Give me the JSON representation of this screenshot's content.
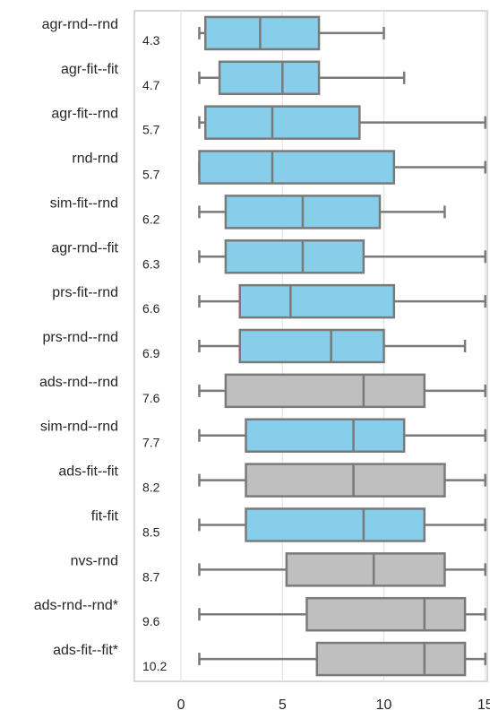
{
  "chart_data": {
    "type": "box",
    "orientation": "horizontal",
    "x_ticks": [
      0,
      5,
      10,
      15
    ],
    "xlim": [
      -2.3,
      15.1
    ],
    "grid": "vertical",
    "colors": {
      "highlight": "#87CEEB",
      "baseline": "#BFBFBF",
      "stroke": "#7A7A7A",
      "grid": "#E3E3E3",
      "frame": "#CCCCCC"
    },
    "series": [
      {
        "name": "agr-rnd--rnd",
        "score": "4.3",
        "color": "highlight",
        "whisker_low": 0.9,
        "q1": 1.2,
        "median": 3.9,
        "q3": 6.8,
        "whisker_high": 10.0
      },
      {
        "name": "agr-fit--fit",
        "score": "4.7",
        "color": "highlight",
        "whisker_low": 0.9,
        "q1": 1.9,
        "median": 5.0,
        "q3": 6.8,
        "whisker_high": 11.0
      },
      {
        "name": "agr-fit--rnd",
        "score": "5.7",
        "color": "highlight",
        "whisker_low": 0.9,
        "q1": 1.2,
        "median": 4.5,
        "q3": 8.8,
        "whisker_high": 15.0
      },
      {
        "name": "rnd-rnd",
        "score": "5.7",
        "color": "highlight",
        "whisker_low": 0.9,
        "q1": 0.9,
        "median": 4.5,
        "q3": 10.5,
        "whisker_high": 15.0
      },
      {
        "name": "sim-fit--rnd",
        "score": "6.2",
        "color": "highlight",
        "whisker_low": 0.9,
        "q1": 2.2,
        "median": 6.0,
        "q3": 9.8,
        "whisker_high": 13.0
      },
      {
        "name": "agr-rnd--fit",
        "score": "6.3",
        "color": "highlight",
        "whisker_low": 0.9,
        "q1": 2.2,
        "median": 6.0,
        "q3": 9.0,
        "whisker_high": 15.0
      },
      {
        "name": "prs-fit--rnd",
        "score": "6.6",
        "color": "highlight",
        "whisker_low": 0.9,
        "q1": 2.9,
        "median": 5.4,
        "q3": 10.5,
        "whisker_high": 15.0
      },
      {
        "name": "prs-rnd--rnd",
        "score": "6.9",
        "color": "highlight",
        "whisker_low": 0.9,
        "q1": 2.9,
        "median": 7.4,
        "q3": 10.0,
        "whisker_high": 14.0
      },
      {
        "name": "ads-rnd--rnd",
        "score": "7.6",
        "color": "baseline",
        "whisker_low": 0.9,
        "q1": 2.2,
        "median": 9.0,
        "q3": 12.0,
        "whisker_high": 15.0
      },
      {
        "name": "sim-rnd--rnd",
        "score": "7.7",
        "color": "highlight",
        "whisker_low": 0.9,
        "q1": 3.2,
        "median": 8.5,
        "q3": 11.0,
        "whisker_high": 15.0
      },
      {
        "name": "ads-fit--fit",
        "score": "8.2",
        "color": "baseline",
        "whisker_low": 0.9,
        "q1": 3.2,
        "median": 8.5,
        "q3": 13.0,
        "whisker_high": 15.0
      },
      {
        "name": "fit-fit",
        "score": "8.5",
        "color": "highlight",
        "whisker_low": 0.9,
        "q1": 3.2,
        "median": 9.0,
        "q3": 12.0,
        "whisker_high": 15.0
      },
      {
        "name": "nvs-rnd",
        "score": "8.7",
        "color": "baseline",
        "whisker_low": 0.9,
        "q1": 5.2,
        "median": 9.5,
        "q3": 13.0,
        "whisker_high": 15.0
      },
      {
        "name": "ads-rnd--rnd*",
        "score": "9.6",
        "color": "baseline",
        "whisker_low": 0.9,
        "q1": 6.2,
        "median": 12.0,
        "q3": 14.0,
        "whisker_high": 15.0
      },
      {
        "name": "ads-fit--fit*",
        "score": "10.2",
        "color": "baseline",
        "whisker_low": 0.9,
        "q1": 6.7,
        "median": 12.0,
        "q3": 14.0,
        "whisker_high": 15.0
      }
    ]
  }
}
